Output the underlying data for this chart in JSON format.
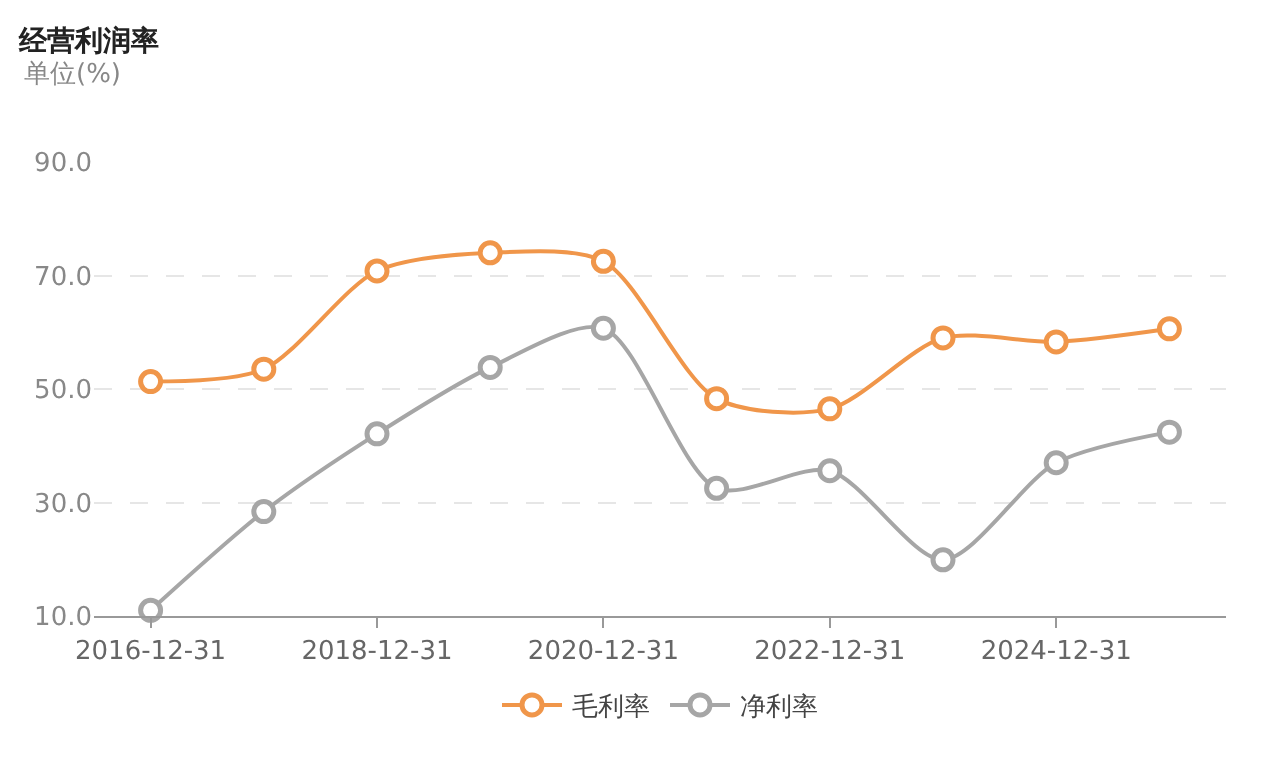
{
  "chart_data": {
    "type": "line",
    "title": "经营利润率",
    "ylabel": "单位(%)",
    "categories": [
      "2016-12-31",
      null,
      "2018-12-31",
      null,
      "2020-12-31",
      null,
      "2022-12-31",
      null,
      "2024-12-31",
      null
    ],
    "series": [
      {
        "name": "毛利率",
        "color": "#f0964a",
        "values": [
          51.3,
          53.5,
          70.8,
          74.0,
          72.5,
          48.3,
          46.5,
          59.0,
          58.3,
          60.6
        ]
      },
      {
        "name": "净利率",
        "color": "#a6a6a6",
        "values": [
          11.0,
          28.4,
          42.1,
          53.8,
          60.7,
          32.5,
          35.6,
          19.9,
          37.0,
          42.4
        ]
      }
    ],
    "ylim": [
      10,
      90
    ],
    "yticks": [
      {
        "value": 10,
        "label": "10.0"
      },
      {
        "value": 30,
        "label": "30.0"
      },
      {
        "value": 50,
        "label": "50.0"
      },
      {
        "value": 70,
        "label": "70.0"
      },
      {
        "value": 90,
        "label": "90.0"
      }
    ],
    "grid": "y",
    "legend": "bottom",
    "marker": "circle",
    "line_style": "solid"
  }
}
